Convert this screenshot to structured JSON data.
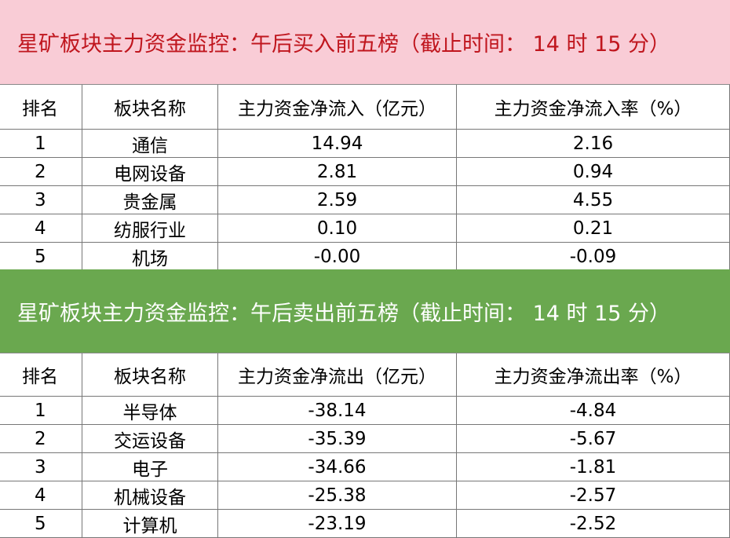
{
  "sections": [
    {
      "title": "星矿板块主力资金监控：午后买入前五榜（截止时间： 14 时 15 分）",
      "header": [
        "排名",
        "板块名称",
        "主力资金净流入（亿元）",
        "主力资金净流入率（%）"
      ],
      "rows": [
        [
          "1",
          "通信",
          "14.94",
          "2.16"
        ],
        [
          "2",
          "电网设备",
          "2.81",
          "0.94"
        ],
        [
          "3",
          "贵金属",
          "2.59",
          "4.55"
        ],
        [
          "4",
          "纺服行业",
          "0.10",
          "0.21"
        ],
        [
          "5",
          "机场",
          "-0.00",
          "-0.09"
        ]
      ]
    },
    {
      "title": "星矿板块主力资金监控：午后卖出前五榜（截止时间： 14 时 15 分）",
      "header": [
        "排名",
        "板块名称",
        "主力资金净流出（亿元）",
        "主力资金净流出率（%）"
      ],
      "rows": [
        [
          "1",
          "半导体",
          "-38.14",
          "-4.84"
        ],
        [
          "2",
          "交运设备",
          "-35.39",
          "-5.67"
        ],
        [
          "3",
          "电子",
          "-34.66",
          "-1.81"
        ],
        [
          "4",
          "机械设备",
          "-25.38",
          "-2.57"
        ],
        [
          "5",
          "计算机",
          "-23.19",
          "-2.52"
        ]
      ]
    }
  ]
}
